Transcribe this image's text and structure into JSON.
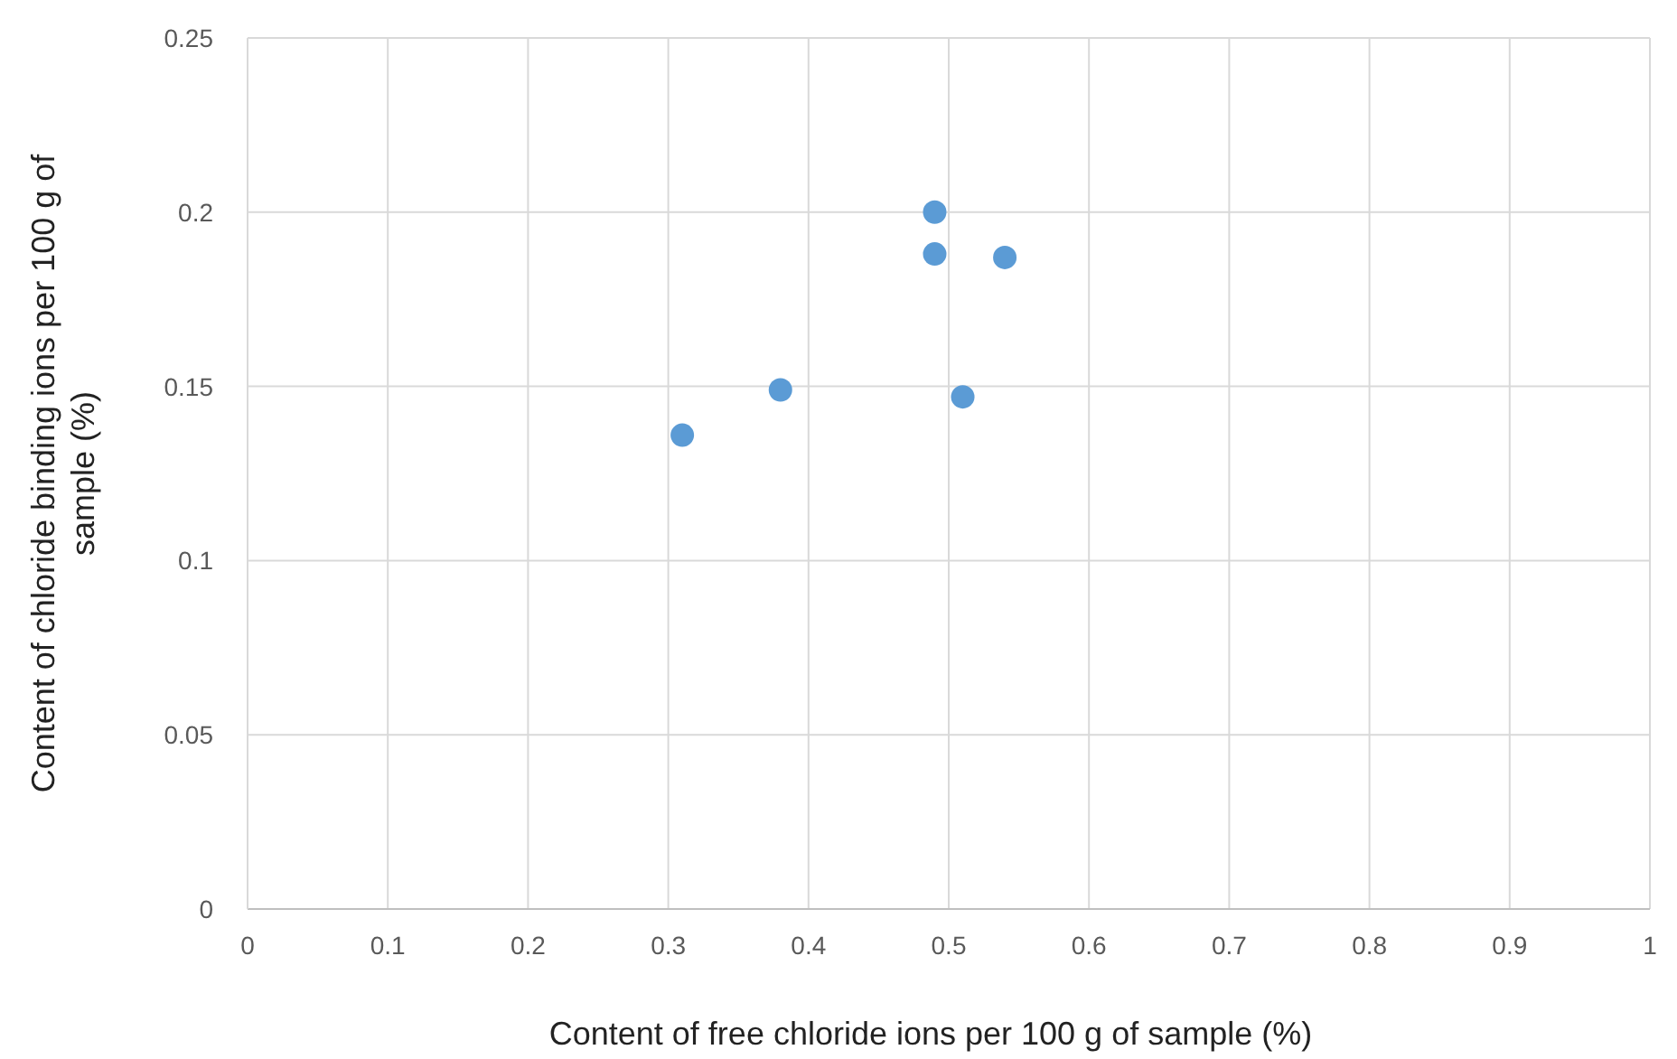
{
  "chart_data": {
    "type": "scatter",
    "xlabel": "Content of free chloride ions per 100 g of sample (%)",
    "ylabel": "Content of chloride binding ions per 100 g of sample (%)",
    "x": [
      0.31,
      0.38,
      0.49,
      0.49,
      0.51,
      0.54
    ],
    "series": [
      {
        "color": "#5b9bd5",
        "values": [
          0.136,
          0.149,
          0.2,
          0.188,
          0.147,
          0.187
        ]
      }
    ],
    "xlim": [
      0,
      1
    ],
    "xticks": [
      0,
      0.1,
      0.2,
      0.3,
      0.4,
      0.5,
      0.6,
      0.7,
      0.8,
      0.9,
      1
    ],
    "ylim": [
      0,
      0.25
    ],
    "yticks": [
      0,
      0.05,
      0.1,
      0.15,
      0.2,
      0.25
    ],
    "grid": true,
    "marker": "circle"
  }
}
